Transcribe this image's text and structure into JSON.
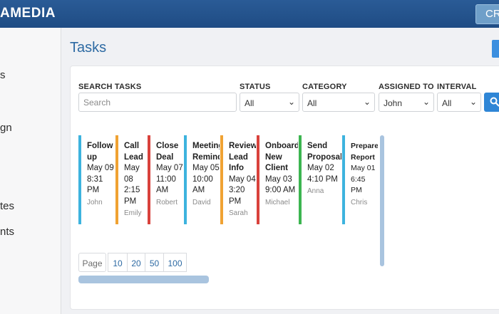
{
  "header": {
    "brand": "AMEDIA",
    "crm_button": "CRM"
  },
  "sidebar": {
    "items": [
      {
        "label": "s"
      },
      {
        "label": "gn"
      },
      {
        "label": "tes"
      },
      {
        "label": "nts"
      }
    ]
  },
  "page": {
    "title": "Tasks"
  },
  "filters": {
    "search_label": "SEARCH TASKS",
    "search_placeholder": "Search",
    "status": {
      "label": "STATUS",
      "value": "All"
    },
    "category": {
      "label": "CATEGORY",
      "value": "All"
    },
    "assigned": {
      "label": "ASSIGNED TO",
      "value": "John"
    },
    "interval": {
      "label": "INTERVAL",
      "value": "All"
    }
  },
  "tasks": [
    {
      "title": "Follow up",
      "when": "May 09 8:31 PM",
      "who": "John",
      "color": "#3db3de"
    },
    {
      "title": "Call Lead",
      "when": "May 08 2:15 PM",
      "who": "Emily",
      "color": "#f0a233"
    },
    {
      "title": "Close Deal",
      "when": "May 07 11:00 AM",
      "who": "Robert",
      "color": "#d9423c"
    },
    {
      "title": "Meeting Reminder",
      "when": "May 05 10:00 AM",
      "who": "David",
      "color": "#3db3de"
    },
    {
      "title": "Review Lead Info",
      "when": "May 04 3:20 PM",
      "who": "Sarah",
      "color": "#f0a233"
    },
    {
      "title": "Onboard New Client",
      "when": "May 03 9:00 AM",
      "who": "Michael",
      "color": "#d9423c"
    },
    {
      "title": "Send Proposal",
      "when": "May 02 4:10 PM",
      "who": "Anna",
      "color": "#3cb550"
    },
    {
      "title": "Prepare Report",
      "when": "May 01 6:45 PM",
      "who": "Chris",
      "color": "#3db3de"
    }
  ],
  "pager": {
    "label": "Page",
    "sizes": [
      "10",
      "20",
      "50",
      "100"
    ]
  }
}
